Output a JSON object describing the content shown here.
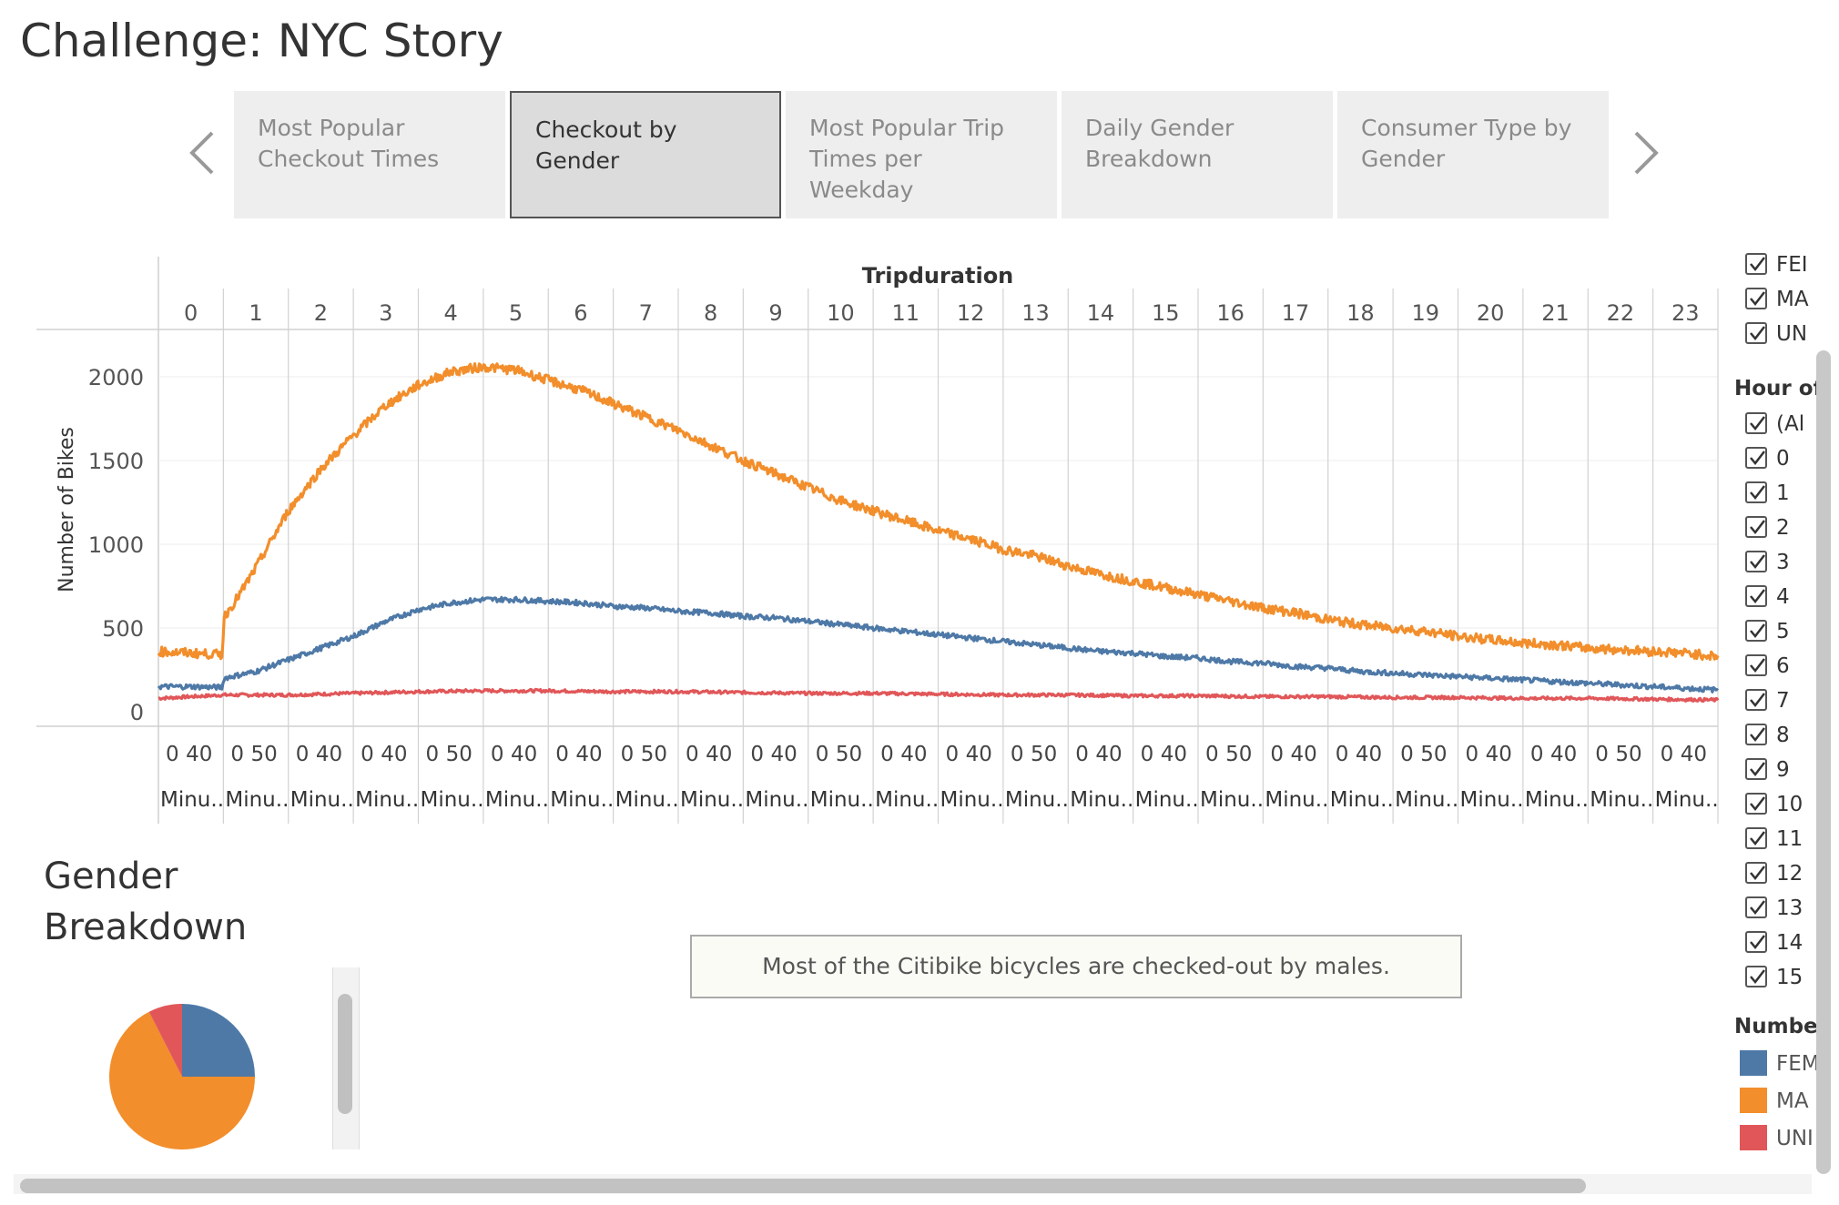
{
  "header": {
    "title": "Challenge: NYC Story"
  },
  "story": {
    "tabs": [
      {
        "label": "Most Popular Checkout Times",
        "active": false
      },
      {
        "label": "Checkout by Gender",
        "active": true
      },
      {
        "label": "Most Popular Trip Times per Weekday",
        "active": false
      },
      {
        "label": "Daily Gender Breakdown",
        "active": false
      },
      {
        "label": "Consumer Type by Gender",
        "active": false
      }
    ],
    "prev_icon": "chevron-left-icon",
    "next_icon": "chevron-right-icon"
  },
  "chart_data": [
    {
      "type": "line",
      "top_label": "Tripduration",
      "ylabel": "Number of Bikes",
      "ylim": [
        0,
        2250
      ],
      "yticks": [
        0,
        500,
        1000,
        1500,
        2000
      ],
      "hour_headers": [
        "0",
        "1",
        "2",
        "3",
        "4",
        "5",
        "6",
        "7",
        "8",
        "9",
        "10",
        "11",
        "12",
        "13",
        "14",
        "15",
        "16",
        "17",
        "18",
        "19",
        "20",
        "21",
        "22",
        "23"
      ],
      "minute_tick_labels": [
        [
          "0",
          "40"
        ],
        [
          "0",
          "50"
        ],
        [
          "0",
          "40"
        ],
        [
          "0",
          "40"
        ],
        [
          "0",
          "50"
        ],
        [
          "0",
          "40"
        ],
        [
          "0",
          "40"
        ],
        [
          "0",
          "50"
        ],
        [
          "0",
          "40"
        ],
        [
          "0",
          "40"
        ],
        [
          "0",
          "50"
        ],
        [
          "0",
          "40"
        ],
        [
          "0",
          "40"
        ],
        [
          "0",
          "50"
        ],
        [
          "0",
          "40"
        ],
        [
          "0",
          "40"
        ],
        [
          "0",
          "50"
        ],
        [
          "0",
          "40"
        ],
        [
          "0",
          "40"
        ],
        [
          "0",
          "50"
        ],
        [
          "0",
          "40"
        ],
        [
          "0",
          "40"
        ],
        [
          "0",
          "50"
        ],
        [
          "0",
          "40"
        ]
      ],
      "minute_axis_label": "Minu..",
      "x_unit": "hour of trip duration (0-24)",
      "grid": true,
      "series": [
        {
          "name": "MALE",
          "color": "#f28e2b",
          "x": [
            0,
            0.5,
            0.99,
            1.0,
            1.25,
            1.5,
            2.0,
            2.5,
            3.0,
            3.5,
            4.0,
            4.5,
            5.0,
            5.5,
            6.0,
            6.5,
            7.0,
            7.5,
            8.0,
            8.5,
            9.0,
            9.5,
            10.0,
            10.5,
            11.0,
            11.5,
            12.0,
            12.5,
            13.0,
            13.5,
            14.0,
            14.5,
            15.0,
            15.5,
            16.0,
            16.5,
            17.0,
            17.5,
            18.0,
            18.5,
            19.0,
            19.5,
            20.0,
            20.5,
            21.0,
            21.5,
            22.0,
            22.5,
            23.0,
            23.5,
            24.0
          ],
          "values": [
            360,
            350,
            340,
            560,
            700,
            860,
            1200,
            1450,
            1650,
            1830,
            1950,
            2030,
            2060,
            2040,
            1980,
            1920,
            1840,
            1760,
            1680,
            1590,
            1500,
            1420,
            1340,
            1260,
            1200,
            1140,
            1080,
            1030,
            970,
            930,
            870,
            820,
            780,
            740,
            700,
            660,
            620,
            590,
            550,
            520,
            500,
            480,
            450,
            430,
            410,
            400,
            380,
            370,
            360,
            350,
            330
          ]
        },
        {
          "name": "FEMALE",
          "color": "#4e79a7",
          "x": [
            0,
            0.5,
            0.99,
            1.0,
            1.5,
            2.0,
            2.5,
            3.0,
            3.5,
            4.0,
            4.5,
            5.0,
            5.5,
            6.0,
            6.5,
            7.0,
            7.5,
            8.0,
            8.5,
            9.0,
            9.5,
            10.0,
            10.5,
            11.0,
            11.5,
            12.0,
            12.5,
            13.0,
            13.5,
            14.0,
            14.5,
            15.0,
            15.5,
            16.0,
            16.5,
            17.0,
            17.5,
            18.0,
            18.5,
            19.0,
            19.5,
            20.0,
            20.5,
            21.0,
            21.5,
            22.0,
            22.5,
            23.0,
            23.5,
            24.0
          ],
          "values": [
            150,
            150,
            145,
            200,
            240,
            310,
            380,
            450,
            540,
            610,
            650,
            670,
            670,
            660,
            650,
            630,
            620,
            600,
            590,
            570,
            560,
            540,
            520,
            500,
            480,
            460,
            440,
            420,
            400,
            380,
            360,
            350,
            330,
            320,
            300,
            290,
            270,
            260,
            240,
            230,
            220,
            210,
            200,
            190,
            180,
            170,
            160,
            150,
            140,
            130
          ]
        },
        {
          "name": "UNKNOWN",
          "color": "#e15759",
          "x": [
            0,
            1,
            2,
            3,
            4,
            5,
            6,
            7,
            8,
            9,
            10,
            11,
            12,
            13,
            14,
            15,
            16,
            17,
            18,
            19,
            20,
            21,
            22,
            23,
            24
          ],
          "values": [
            80,
            100,
            100,
            110,
            120,
            125,
            125,
            120,
            120,
            115,
            110,
            110,
            105,
            100,
            100,
            95,
            95,
            90,
            90,
            85,
            85,
            80,
            80,
            75,
            70
          ]
        }
      ]
    },
    {
      "type": "pie",
      "title": "",
      "slices": [
        {
          "name": "FEMALE",
          "fraction": 0.25,
          "color": "#4e79a7"
        },
        {
          "name": "MALE",
          "fraction": 0.675,
          "color": "#f28e2b"
        },
        {
          "name": "UNKNOWN",
          "fraction": 0.075,
          "color": "#e15759"
        }
      ]
    }
  ],
  "section": {
    "title": "Gender Breakdown"
  },
  "caption": {
    "text": "Most of the Citibike bicycles are checked-out by males."
  },
  "filters": {
    "gender_items": [
      "FEI",
      "MA",
      "UN"
    ],
    "hour_heading": "Hour of",
    "hour_items": [
      "(Al",
      "0",
      "1",
      "2",
      "3",
      "4",
      "5",
      "6",
      "7",
      "8",
      "9",
      "10",
      "11",
      "12",
      "13",
      "14",
      "15"
    ],
    "checkbox_icon": "checkmark-icon"
  },
  "legend": {
    "heading": "Number",
    "items": [
      {
        "label": "FEM",
        "color": "#4e79a7"
      },
      {
        "label": "MA",
        "color": "#f28e2b"
      },
      {
        "label": "UNI",
        "color": "#e15759"
      }
    ]
  }
}
